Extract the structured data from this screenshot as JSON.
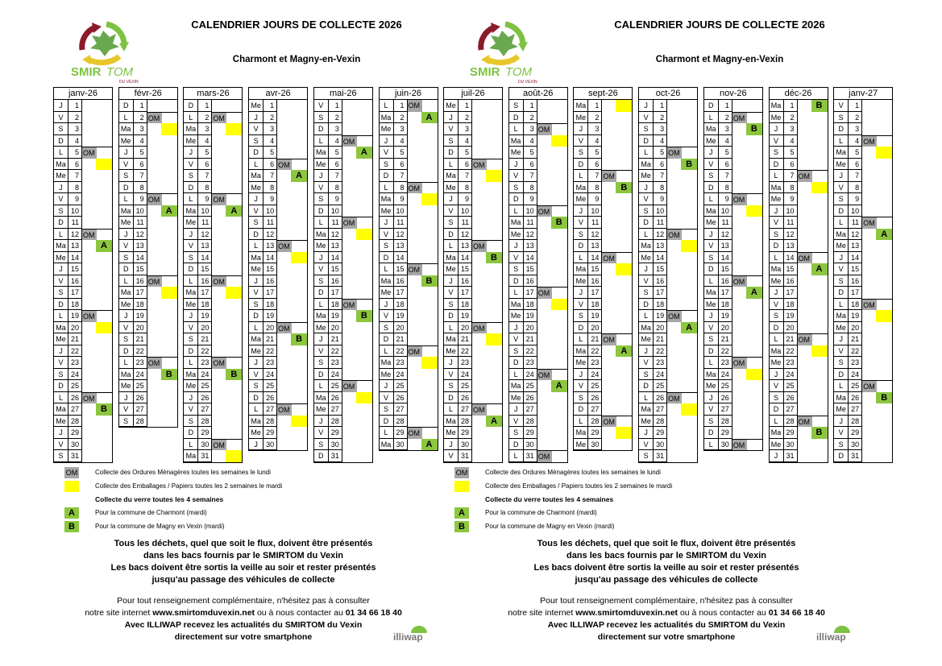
{
  "header": {
    "title": "CALENDRIER JOURS DE COLLECTE 2026",
    "subtitle": "Charmont et Magny-en-Vexin"
  },
  "logo": {
    "name": "SMIRTOM",
    "name_a": "SMIR",
    "name_b": "TOM",
    "tagline": "DU VEXIN"
  },
  "colors": {
    "om": "#a6a6a6",
    "yellow": "#ffff00",
    "green": "#8cc63f"
  },
  "legend": {
    "om_label": "OM",
    "om_text": "Collecte des Ordures Ménagères toutes les semaines le lundi",
    "yellow_text": "Collecte des Emballages / Papiers toutes les 2 semaines le mardi",
    "verre_text": "Collecte du verre toutes les 4 semaines",
    "a_label": "A",
    "a_text": "Pour la commune de Charmont (mardi)",
    "b_label": "B",
    "b_text": "Pour la commune de Magny en Vexin (mardi)"
  },
  "notes": [
    "Tous les déchets, quel que soit le flux, doivent être présentés",
    "dans les bacs fournis par le SMIRTOM du Vexin",
    "Les bacs doivent être sortis la veille au soir et rester présentés",
    "jusqu'au passage des véhicules de collecte"
  ],
  "info": {
    "line1": "Pour tout renseignement complémentaire, n'hésitez pas à consulter",
    "line2a": "notre site internet ",
    "website": "www.smirtomduvexin.net",
    "line2b": " ou à nous contacter au ",
    "phone": "01 34 66 18 40",
    "line3": "Avec ILLIWAP recevez les actualités du SMIRTOM du Vexin",
    "line4": "directement sur votre smartphone"
  },
  "illiwap": "illiwap",
  "sheets": [
    {
      "months": [
        {
          "label": "janv-26",
          "days": [
            "J 1",
            "V 2",
            "S 3",
            "D 4",
            "L 5 OM",
            "Ma 6 Y",
            "Me 7",
            "J 8",
            "V 9",
            "S 10",
            "D 11",
            "L 12 OM",
            "Ma 13 A",
            "Me 14",
            "J 15",
            "V 16",
            "S 17",
            "D 18",
            "L 19 OM",
            "Ma 20 Y",
            "Me 21",
            "J 22",
            "V 23",
            "S 24",
            "D 25",
            "L 26 OM",
            "Ma 27 B",
            "Me 28",
            "J 29",
            "V 30",
            "S 31"
          ]
        },
        {
          "label": "févr-26",
          "days": [
            "D 1",
            "L 2 OM",
            "Ma 3 Y",
            "Me 4",
            "J 5",
            "V 6",
            "S 7",
            "D 8",
            "L 9 OM",
            "Ma 10 A",
            "Me 11",
            "J 12",
            "V 13",
            "S 14",
            "D 15",
            "L 16 OM",
            "Ma 17 Y",
            "Me 18",
            "J 19",
            "V 20",
            "S 21",
            "D 22",
            "L 23 OM",
            "Ma 24 B",
            "Me 25",
            "J 26",
            "V 27",
            "S 28"
          ]
        },
        {
          "label": "mars-26",
          "days": [
            "D 1",
            "L 2 OM",
            "Ma 3 Y",
            "Me 4",
            "J 5",
            "V 6",
            "S 7",
            "D 8",
            "L 9 OM",
            "Ma 10 A",
            "Me 11",
            "J 12",
            "V 13",
            "S 14",
            "D 15",
            "L 16 OM",
            "Ma 17 Y",
            "Me 18",
            "J 19",
            "V 20",
            "S 21",
            "D 22",
            "L 23 OM",
            "Ma 24 B",
            "Me 25",
            "J 26",
            "V 27",
            "S 28",
            "D 29",
            "L 30 OM",
            "Ma 31 Y"
          ]
        },
        {
          "label": "avr-26",
          "days": [
            "Me 1",
            "J 2",
            "V 3",
            "S 4",
            "D 5",
            "L 6 OM",
            "Ma 7 A",
            "Me 8",
            "J 9",
            "V 10",
            "S 11",
            "D 12",
            "L 13 OM",
            "Ma 14 Y",
            "Me 15",
            "J 16",
            "V 17",
            "S 18",
            "D 19",
            "L 20 OM",
            "Ma 21 B",
            "Me 22",
            "J 23",
            "V 24",
            "S 25",
            "D 26",
            "L 27 OM",
            "Ma 28 Y",
            "Me 29",
            "J 30"
          ]
        },
        {
          "label": "mai-26",
          "days": [
            "V 1",
            "S 2",
            "D 3",
            "L 4 OM",
            "Ma 5 A",
            "Me 6",
            "J 7",
            "V 8",
            "S 9",
            "D 10",
            "L 11 OM",
            "Ma 12 Y",
            "Me 13",
            "J 14",
            "V 15",
            "S 16",
            "D 17",
            "L 18 OM",
            "Ma 19 B",
            "Me 20",
            "J 21",
            "V 22",
            "S 23",
            "D 24",
            "L 25 OM",
            "Ma 26 Y",
            "Me 27",
            "J 28",
            "V 29",
            "S 30",
            "D 31"
          ]
        },
        {
          "label": "juin-26",
          "days": [
            "L 1 OM",
            "Ma 2 A",
            "Me 3",
            "J 4",
            "V 5",
            "S 6",
            "D 7",
            "L 8 OM",
            "Ma 9 Y",
            "Me 10",
            "J 11",
            "V 12",
            "S 13",
            "D 14",
            "L 15 OM",
            "Ma 16 B",
            "Me 17",
            "J 18",
            "V 19",
            "S 20",
            "D 21",
            "L 22 OM",
            "Ma 23 Y",
            "Me 24",
            "J 25",
            "V 26",
            "S 27",
            "D 28",
            "L 29 OM",
            "Ma 30 A"
          ]
        }
      ]
    },
    {
      "months": [
        {
          "label": "juil-26",
          "days": [
            "Me 1",
            "J 2",
            "V 3",
            "S 4",
            "D 5",
            "L 6 OM",
            "Ma 7 Y",
            "Me 8",
            "J 9",
            "V 10",
            "S 11",
            "D 12",
            "L 13 OM",
            "Ma 14 B",
            "Me 15",
            "J 16",
            "V 17",
            "S 18",
            "D 19",
            "L 20 OM",
            "Ma 21 Y",
            "Me 22",
            "J 23",
            "V 24",
            "S 25",
            "D 26",
            "L 27 OM",
            "Ma 28 A",
            "Me 29",
            "J 30",
            "V 31"
          ]
        },
        {
          "label": "août-26",
          "days": [
            "S 1",
            "D 2",
            "L 3 OM",
            "Ma 4 Y",
            "Me 5",
            "J 6",
            "V 7",
            "S 8",
            "D 9",
            "L 10 OM",
            "Ma 11 B",
            "Me 12",
            "J 13",
            "V 14",
            "S 15",
            "D 16",
            "L 17 OM",
            "Ma 18 Y",
            "Me 19",
            "J 20",
            "V 21",
            "S 22",
            "D 23",
            "L 24 OM",
            "Ma 25 A",
            "Me 26",
            "J 27",
            "V 28",
            "S 29",
            "D 30",
            "L 31 OM"
          ]
        },
        {
          "label": "sept-26",
          "days": [
            "Ma 1 Y",
            "Me 2",
            "J 3",
            "V 4",
            "S 5",
            "D 6",
            "L 7 OM",
            "Ma 8 B",
            "Me 9",
            "J 10",
            "V 11",
            "S 12",
            "D 13",
            "L 14 OM",
            "Ma 15 Y",
            "Me 16",
            "J 17",
            "V 18",
            "S 19",
            "D 20",
            "L 21 OM",
            "Ma 22 A",
            "Me 23",
            "J 24",
            "V 25",
            "S 26",
            "D 27",
            "L 28 OM",
            "Ma 29 Y",
            "Me 30"
          ]
        },
        {
          "label": "oct-26",
          "days": [
            "J 1",
            "V 2",
            "S 3",
            "D 4",
            "L 5 OM",
            "Ma 6 B",
            "Me 7",
            "J 8",
            "V 9",
            "S 10",
            "D 11",
            "L 12 OM",
            "Ma 13 Y",
            "Me 14",
            "J 15",
            "V 16",
            "S 17",
            "D 18",
            "L 19 OM",
            "Ma 20 A",
            "Me 21",
            "J 22",
            "V 23",
            "S 24",
            "D 25",
            "L 26 OM",
            "Ma 27 Y",
            "Me 28",
            "J 29",
            "V 30",
            "S 31"
          ]
        },
        {
          "label": "nov-26",
          "days": [
            "D 1",
            "L 2 OM",
            "Ma 3 B",
            "Me 4",
            "J 5",
            "V 6",
            "S 7",
            "D 8",
            "L 9 OM",
            "Ma 10 Y",
            "Me 11",
            "J 12",
            "V 13",
            "S 14",
            "D 15",
            "L 16 OM",
            "Ma 17 A",
            "Me 18",
            "J 19",
            "V 20",
            "S 21",
            "D 22",
            "L 23 OM",
            "Ma 24 Y",
            "Me 25",
            "J 26",
            "V 27",
            "S 28",
            "D 29",
            "L 30 OM"
          ]
        },
        {
          "label": "déc-26",
          "days": [
            "Ma 1 B",
            "Me 2",
            "J 3",
            "V 4",
            "S 5",
            "D 6",
            "L 7 OM",
            "Ma 8 Y",
            "Me 9",
            "J 10",
            "V 11",
            "S 12",
            "D 13",
            "L 14 OM",
            "Ma 15 A",
            "Me 16",
            "J 17",
            "V 18",
            "S 19",
            "D 20",
            "L 21 OM",
            "Ma 22 Y",
            "Me 23",
            "J 24",
            "V 25",
            "S 26",
            "D 27",
            "L 28 OM",
            "Ma 29 B",
            "Me 30",
            "J 31"
          ]
        },
        {
          "label": "janv-27",
          "days": [
            "V 1",
            "S 2",
            "D 3",
            "L 4 OM",
            "Ma 5 Y",
            "Me 6",
            "J 7",
            "V 8",
            "S 9",
            "D 10",
            "L 11 OM",
            "Ma 12 A",
            "Me 13",
            "J 14",
            "V 15",
            "S 16",
            "D 17",
            "L 18 OM",
            "Ma 19 Y",
            "Me 20",
            "J 21",
            "V 22",
            "S 23",
            "D 24",
            "L 25 OM",
            "Ma 26 B",
            "Me 27",
            "J 28",
            "V 29",
            "S 30",
            "D 31"
          ]
        }
      ]
    }
  ]
}
